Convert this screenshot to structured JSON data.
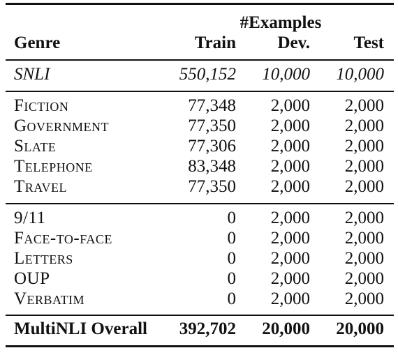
{
  "table": {
    "group_header": "#Examples",
    "columns": {
      "genre": "Genre",
      "train": "Train",
      "dev": "Dev.",
      "test": "Test"
    },
    "snli": {
      "genre": "SNLI",
      "train": "550,152",
      "dev": "10,000",
      "test": "10,000"
    },
    "matched": [
      {
        "genre": "Fiction",
        "train": "77,348",
        "dev": "2,000",
        "test": "2,000"
      },
      {
        "genre": "Government",
        "train": "77,350",
        "dev": "2,000",
        "test": "2,000"
      },
      {
        "genre": "Slate",
        "train": "77,306",
        "dev": "2,000",
        "test": "2,000"
      },
      {
        "genre": "Telephone",
        "train": "83,348",
        "dev": "2,000",
        "test": "2,000"
      },
      {
        "genre": "Travel",
        "train": "77,350",
        "dev": "2,000",
        "test": "2,000"
      }
    ],
    "mismatched": [
      {
        "genre": "9/11",
        "train": "0",
        "dev": "2,000",
        "test": "2,000"
      },
      {
        "genre": "Face-to-face",
        "train": "0",
        "dev": "2,000",
        "test": "2,000"
      },
      {
        "genre": "Letters",
        "train": "0",
        "dev": "2,000",
        "test": "2,000"
      },
      {
        "genre": "OUP",
        "train": "0",
        "dev": "2,000",
        "test": "2,000"
      },
      {
        "genre": "Verbatim",
        "train": "0",
        "dev": "2,000",
        "test": "2,000"
      }
    ],
    "overall": {
      "genre": "MultiNLI Overall",
      "train": "392,702",
      "dev": "20,000",
      "test": "20,000"
    }
  }
}
